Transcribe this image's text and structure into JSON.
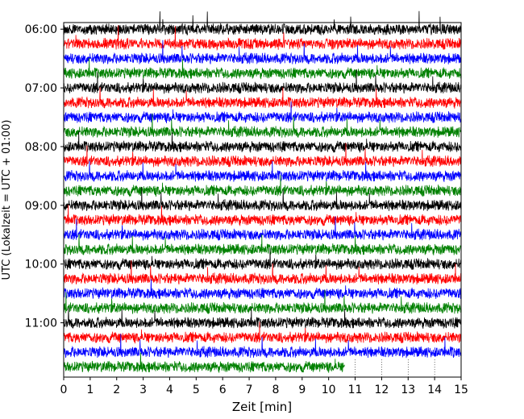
{
  "chart_data": {
    "type": "line",
    "title": "",
    "xlabel": "Zeit  [min]",
    "ylabel": "UTC (Lokalzeit = UTC + 01:00)",
    "xlim": [
      0,
      15
    ],
    "x_ticks": [
      0,
      1,
      2,
      3,
      4,
      5,
      6,
      7,
      8,
      9,
      10,
      11,
      12,
      13,
      14,
      15
    ],
    "x_tick_labels": [
      "0",
      "1",
      "2",
      "3",
      "4",
      "5",
      "6",
      "7",
      "8",
      "9",
      "10",
      "11",
      "12",
      "13",
      "14",
      "15"
    ],
    "y_tick_labels": [
      "06:00",
      "07:00",
      "08:00",
      "09:00",
      "10:00",
      "11:00"
    ],
    "trace_interval_min": 15,
    "start_time": "06:00",
    "end_time": "11:45",
    "last_trace_end_min": 10.6,
    "color_cycle": [
      "#000000",
      "#ff0000",
      "#0000ff",
      "#008000"
    ],
    "series": [
      {
        "start": "06:00",
        "color": "#000000"
      },
      {
        "start": "06:15",
        "color": "#ff0000"
      },
      {
        "start": "06:30",
        "color": "#0000ff"
      },
      {
        "start": "06:45",
        "color": "#008000"
      },
      {
        "start": "07:00",
        "color": "#000000"
      },
      {
        "start": "07:15",
        "color": "#ff0000"
      },
      {
        "start": "07:30",
        "color": "#0000ff"
      },
      {
        "start": "07:45",
        "color": "#008000"
      },
      {
        "start": "08:00",
        "color": "#000000"
      },
      {
        "start": "08:15",
        "color": "#ff0000"
      },
      {
        "start": "08:30",
        "color": "#0000ff"
      },
      {
        "start": "08:45",
        "color": "#008000"
      },
      {
        "start": "09:00",
        "color": "#000000"
      },
      {
        "start": "09:15",
        "color": "#ff0000"
      },
      {
        "start": "09:30",
        "color": "#0000ff"
      },
      {
        "start": "09:45",
        "color": "#008000"
      },
      {
        "start": "10:00",
        "color": "#000000"
      },
      {
        "start": "10:15",
        "color": "#ff0000"
      },
      {
        "start": "10:30",
        "color": "#0000ff"
      },
      {
        "start": "10:45",
        "color": "#008000"
      },
      {
        "start": "11:00",
        "color": "#000000"
      },
      {
        "start": "11:15",
        "color": "#ff0000"
      },
      {
        "start": "11:30",
        "color": "#0000ff"
      },
      {
        "start": "11:45",
        "color": "#008000"
      }
    ],
    "grid": "dotted vertical lines after last trace end",
    "legend": "none"
  }
}
